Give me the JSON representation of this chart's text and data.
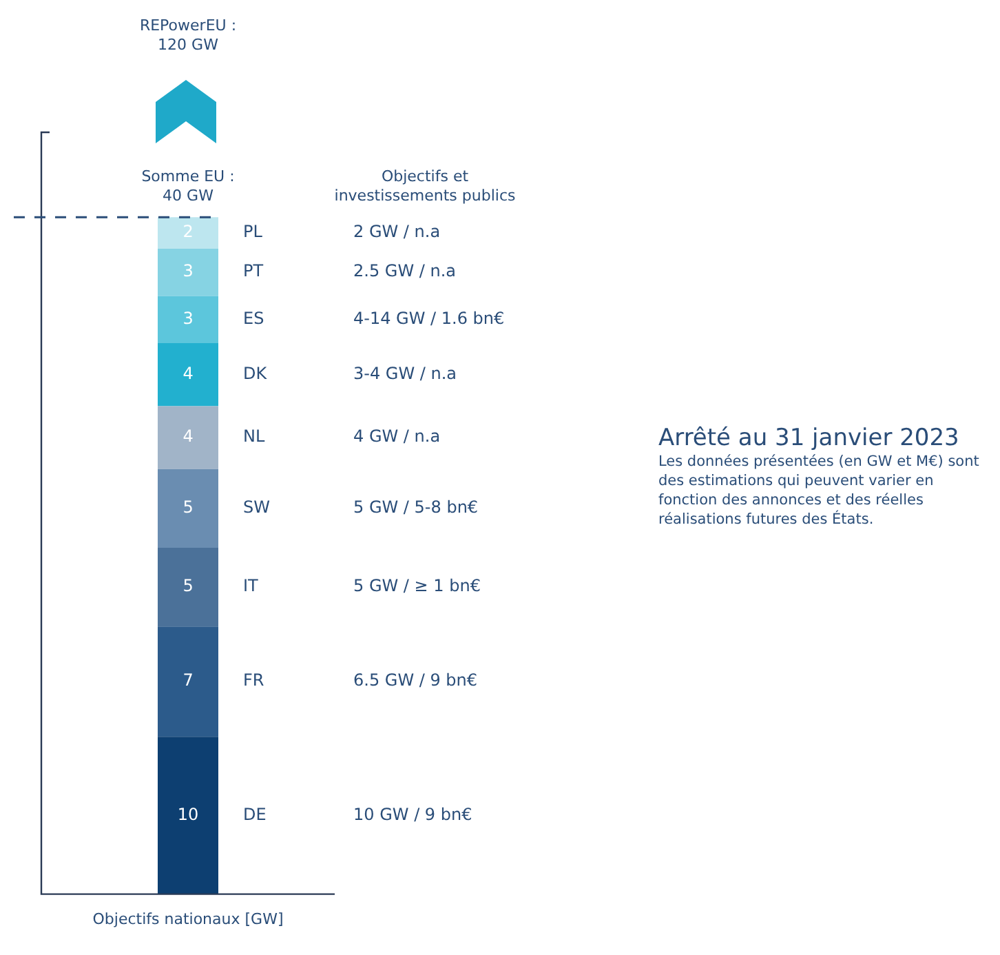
{
  "chart_data": {
    "type": "bar",
    "stacked": true,
    "data_labels": true,
    "legend": false,
    "grid": false,
    "title": "Arrêté au 31 janvier 2023",
    "xlabel": "Objectifs nationaux [GW]",
    "categories": [
      null
    ],
    "series": [
      {
        "name": "DE",
        "color": "#0d3f71",
        "values": [
          10
        ]
      },
      {
        "name": "FR",
        "color": "#2c5b8b",
        "values": [
          7
        ]
      },
      {
        "name": "IT",
        "color": "#4b7199",
        "values": [
          5
        ]
      },
      {
        "name": "SW",
        "color": "#6a8db1",
        "values": [
          5
        ]
      },
      {
        "name": "NL",
        "color": "#a1b4c8",
        "values": [
          4
        ]
      },
      {
        "name": "DK",
        "color": "#22b0cf",
        "values": [
          4
        ]
      },
      {
        "name": "ES",
        "color": "#5cc6dc",
        "values": [
          3
        ]
      },
      {
        "name": "PT",
        "color": "#86d3e3",
        "values": [
          3
        ]
      },
      {
        "name": "PL",
        "color": "#bde6ef",
        "values": [
          2
        ]
      }
    ],
    "ref_lines": [
      {
        "axis": "y",
        "value": 43,
        "color": "#2a4d78",
        "line_style": "dashed"
      }
    ],
    "annotations": [
      "REPowerEU : 120 GW",
      "Objectifs et investissements publics",
      "Somme EU : 40 GW",
      "2 GW / n.a",
      "2.5 GW / n.a",
      "4-14 GW / 1.6 bn€",
      "3-4 GW / n.a",
      "4 GW / n.a",
      "5 GW / 5-8 bn€",
      "5 GW / ≥ 1 bn€",
      "6.5 GW / 9 bn€",
      "10 GW / 9 bn€",
      "Les données présentées (en GW et M€) sont des estimations qui peuvent varier en fonction des annonces et des réelles réalisations futures des États."
    ]
  }
}
